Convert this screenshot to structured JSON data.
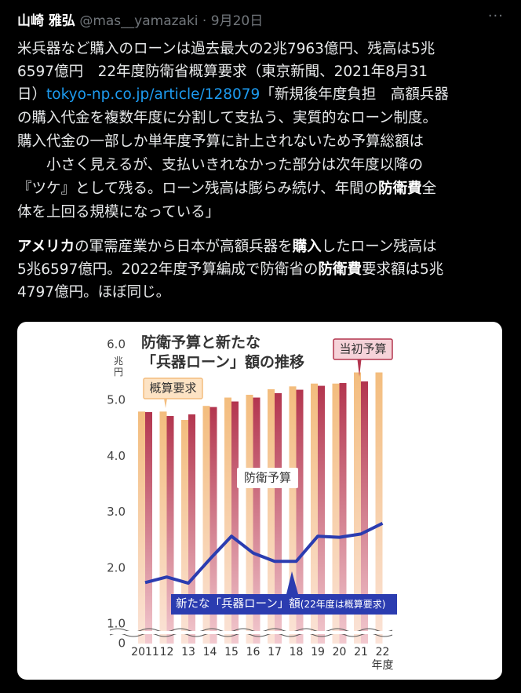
{
  "tweet": {
    "author": "山崎 雅弘",
    "handle": "@mas__yamazaki",
    "date": "9月20日",
    "paragraphs": [
      [
        [
          "米兵器など購入のローンは過去最大の2兆7963億円、残高は5兆"
        ],
        [
          "6597億円　22年度防衛省概算要求（東京新聞、2021年8月31"
        ],
        [
          "日）",
          {
            "text": "tokyo-np.co.jp/article/128079",
            "style": "link"
          },
          "「新規後年度負担　高額兵器"
        ],
        [
          "の購入代金を複数年度に分割して支払う、実質的なローン制度。"
        ],
        [
          "購入代金の一部しか単年度予算に計上されないため予算総額は"
        ],
        [
          "　　小さく見えるが、支払いきれなかった部分は次年度以降の"
        ],
        [
          "『ツケ』として残る。ローン残高は膨らみ続け、年間の",
          {
            "text": "防衛費",
            "style": "bold"
          },
          "全"
        ],
        [
          "体を上回る規模になっている」"
        ]
      ],
      [
        [
          {
            "text": "アメリカ",
            "style": "bold"
          },
          "の軍需産業から日本が高額兵器を",
          {
            "text": "購入",
            "style": "bold"
          },
          "したローン残高は"
        ],
        [
          "5兆6597億円。2022年度予算編成で防衛省の",
          {
            "text": "防衛費",
            "style": "bold"
          },
          "要求額は5兆"
        ],
        [
          "4797億円。ほぼ同じ。"
        ]
      ]
    ]
  },
  "chart_data": {
    "type": "bar_line",
    "title": [
      "防衛予算と新たな",
      "「兵器ローン」額の推移"
    ],
    "y_label": "兆円",
    "x_label": "年度",
    "categories": [
      "2011",
      "12",
      "13",
      "14",
      "15",
      "16",
      "17",
      "18",
      "19",
      "20",
      "21",
      "22"
    ],
    "series": [
      {
        "name": "概算要求",
        "type": "bar",
        "color": "#f3bd7e",
        "values": [
          4.8,
          4.8,
          4.65,
          4.9,
          5.05,
          5.1,
          5.2,
          5.25,
          5.3,
          5.3,
          5.5,
          5.5
        ]
      },
      {
        "name": "当初予算",
        "type": "bar",
        "color": "#b3364f",
        "values": [
          4.79,
          4.72,
          4.75,
          4.88,
          4.98,
          5.05,
          5.13,
          5.19,
          5.26,
          5.31,
          5.34,
          null
        ]
      },
      {
        "name": "新たな「兵器ローン」額",
        "type": "line",
        "color": "#2b3cb0",
        "values": [
          1.74,
          1.84,
          1.73,
          2.16,
          2.57,
          2.27,
          2.12,
          2.12,
          2.57,
          2.55,
          2.61,
          2.8
        ]
      }
    ],
    "annotations": [
      "防衛予算",
      "(22年度は概算要求)"
    ],
    "ylim": [
      0,
      6
    ],
    "y_break": true,
    "yticks": [
      0,
      {
        "value": 1,
        "label": "1.0"
      },
      {
        "value": 2,
        "label": "2.0"
      },
      {
        "value": 3,
        "label": "3.0"
      },
      {
        "value": 4,
        "label": "4.0"
      },
      {
        "value": 5,
        "label": "5.0"
      },
      {
        "value": 6,
        "label": "6.0"
      }
    ]
  }
}
